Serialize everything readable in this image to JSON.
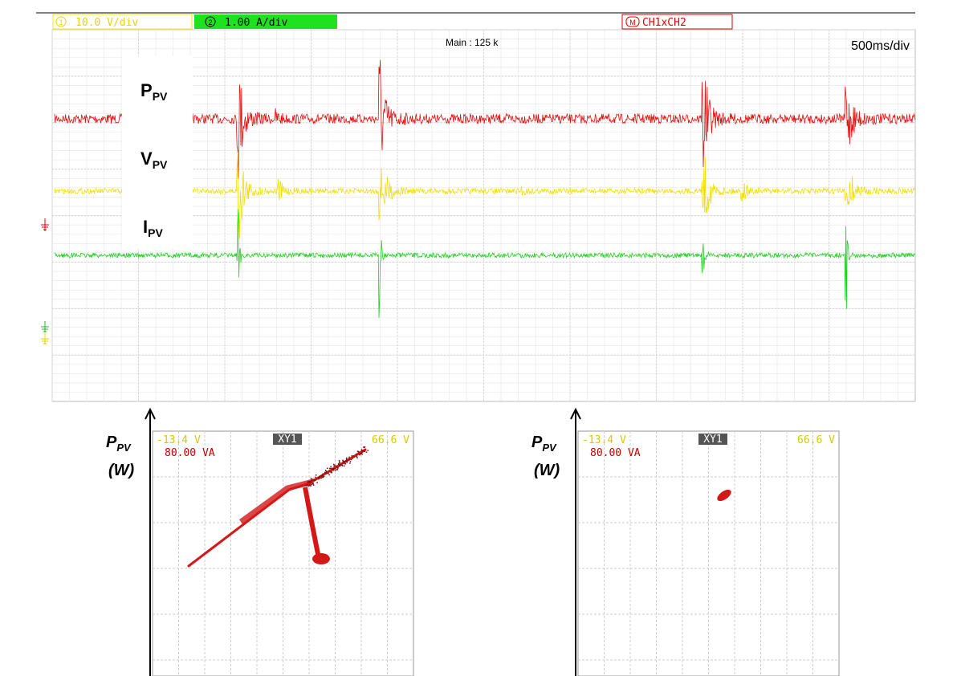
{
  "scope": {
    "ch1_icon": "1",
    "ch1_scale": "10.0 V/div",
    "ch2_icon": "2",
    "ch2_scale": "1.00 A/div",
    "math_icon": "M",
    "math": "CH1xCH2",
    "record": "Main : 125 k",
    "timebase": "500ms/div"
  },
  "trace_labels": [
    {
      "main": "P",
      "sub": "PV"
    },
    {
      "main": "V",
      "sub": "PV"
    },
    {
      "main": "I",
      "sub": "PV"
    }
  ],
  "xy_panels": [
    {
      "axis_main": "P",
      "axis_sub": "PV",
      "axis_unit": "(W)",
      "left": "-13.4 V",
      "name": "XY1",
      "right": "66.6 V",
      "scale": "80.00 VA"
    },
    {
      "axis_main": "P",
      "axis_sub": "PV",
      "axis_unit": "(W)",
      "left": "-13.4 V",
      "name": "XY1",
      "right": "66.6 V",
      "scale": "80.00 VA"
    }
  ]
}
